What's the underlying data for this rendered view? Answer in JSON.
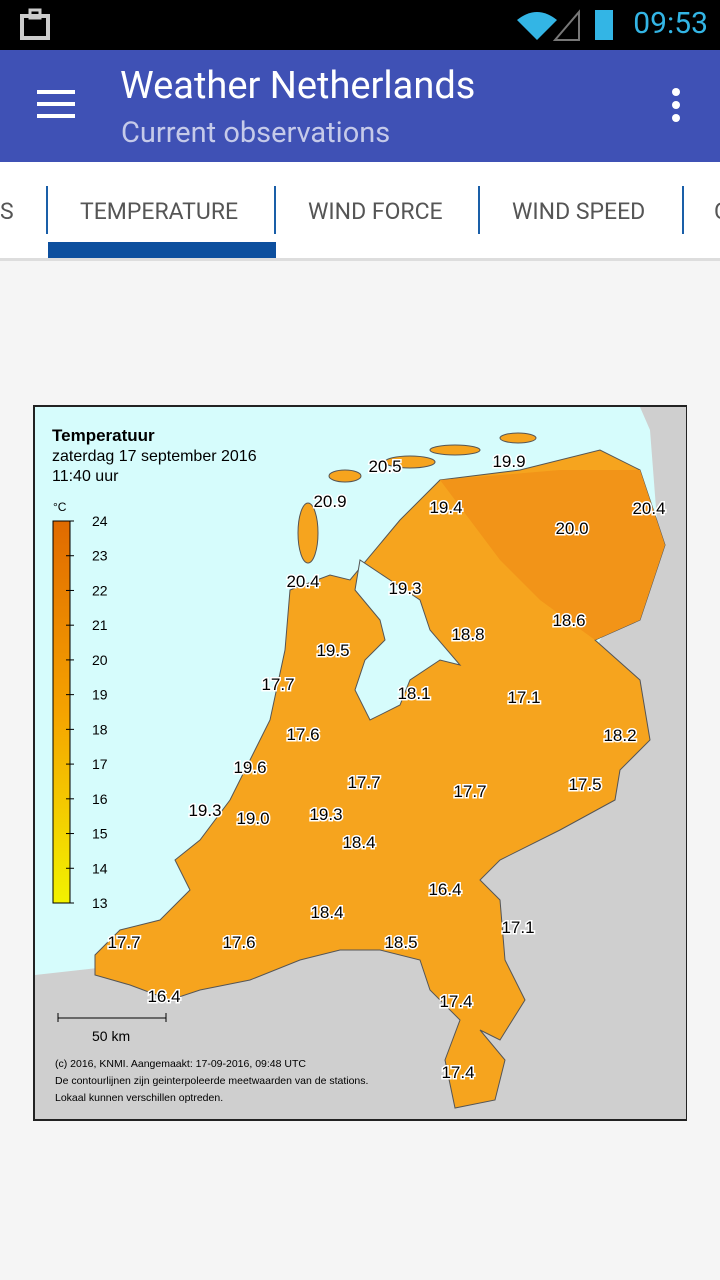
{
  "status_bar": {
    "time": "09:53"
  },
  "app_bar": {
    "title": "Weather Netherlands",
    "subtitle": "Current observations"
  },
  "tabs": [
    "S",
    "TEMPERATURE",
    "WIND FORCE",
    "WIND SPEED",
    "C"
  ],
  "map": {
    "title": "Temperatuur",
    "date": "zaterdag 17 september 2016",
    "time": "11:40 uur",
    "unit": "°C",
    "legend_ticks": [
      24,
      23,
      22,
      21,
      20,
      19,
      18,
      17,
      16,
      15,
      14,
      13
    ],
    "stations": [
      "20.5",
      "19.9",
      "20.9",
      "19.4",
      "20.4",
      "20.0",
      "20.4",
      "19.3",
      "18.6",
      "18.8",
      "19.5",
      "17.7",
      "18.1",
      "17.1",
      "17.6",
      "18.2",
      "19.6",
      "17.7",
      "17.7",
      "17.5",
      "19.3",
      "19.0",
      "19.3",
      "18.4",
      "16.4",
      "18.4",
      "17.1",
      "17.7",
      "17.6",
      "18.5",
      "16.4",
      "17.4",
      "17.4"
    ],
    "scale": "50 km",
    "footer": [
      "(c) 2016, KNMI. Aangemaakt: 17-09-2016, 09:48 UTC",
      "De contourlijnen zijn geinterpoleerde meetwaarden van de stations.",
      "Lokaal kunnen verschillen optreden."
    ]
  }
}
